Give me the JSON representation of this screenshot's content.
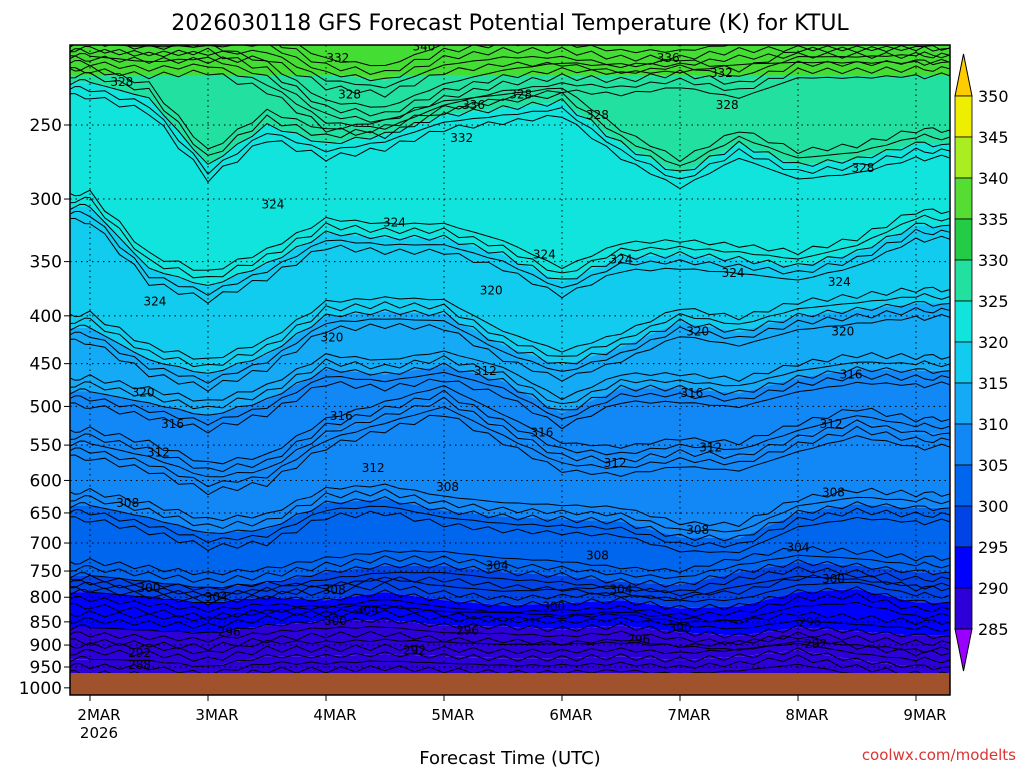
{
  "chart_data": {
    "type": "heatmap",
    "title": "2026030118 GFS Forecast Potential Temperature (K) for KTUL",
    "xlabel": "Forecast Time (UTC)",
    "ylabel": "",
    "x_ticks": [
      "2MAR",
      "3MAR",
      "4MAR",
      "5MAR",
      "6MAR",
      "7MAR",
      "8MAR",
      "9MAR"
    ],
    "x_year": "2026",
    "y_ticks": [
      250,
      300,
      350,
      400,
      450,
      500,
      550,
      600,
      650,
      700,
      750,
      800,
      850,
      900,
      950,
      1000
    ],
    "y_scale": "log-pressure, inverted",
    "ylim": [
      1000,
      200
    ],
    "grid": "dotted",
    "colorbar_levels": [
      285,
      290,
      295,
      300,
      305,
      310,
      315,
      320,
      325,
      330,
      335,
      340,
      345,
      350
    ],
    "colorbar_colors": [
      "#9a00ff",
      "#6a00e8",
      "#2e00d8",
      "#0000ff",
      "#0044e6",
      "#0066ee",
      "#1188f5",
      "#14aaf5",
      "#11ccee",
      "#11e4dd",
      "#22e0a0",
      "#22cc44",
      "#55dd33",
      "#aaee22",
      "#eeee00",
      "#ffcc00"
    ],
    "series": [
      {
        "name": "292",
        "values": [
          932,
          935,
          950,
          925,
          925,
          920,
          925,
          930,
          930,
          926,
          934,
          926,
          912,
          935,
          950
        ]
      },
      {
        "name": "296",
        "values": [
          862,
          868,
          874,
          858,
          848,
          846,
          858,
          860,
          866,
          858,
          872,
          880,
          862,
          870,
          880
        ]
      },
      {
        "name": "300",
        "values": [
          790,
          800,
          812,
          800,
          806,
          790,
          806,
          816,
          812,
          806,
          822,
          818,
          790,
          784,
          810
        ]
      },
      {
        "name": "304",
        "values": [
          758,
          770,
          782,
          772,
          752,
          740,
          740,
          752,
          758,
          770,
          776,
          752,
          734,
          740,
          752
        ]
      },
      {
        "name": "308",
        "values": [
          638,
          658,
          684,
          676,
          634,
          628,
          646,
          656,
          660,
          664,
          690,
          692,
          650,
          636,
          642
        ]
      },
      {
        "name": "312",
        "values": [
          548,
          566,
          596,
          584,
          534,
          512,
          492,
          528,
          566,
          572,
          560,
          566,
          540,
          520,
          534
        ]
      },
      {
        "name": "316",
        "values": [
          482,
          496,
          512,
          492,
          456,
          462,
          452,
          470,
          508,
          478,
          478,
          484,
          466,
          456,
          458
        ]
      },
      {
        "name": "320",
        "values": [
          412,
          446,
          462,
          440,
          400,
          396,
          398,
          430,
          452,
          432,
          406,
          416,
          400,
          394,
          388
        ]
      },
      {
        "name": "324",
        "values": [
          306,
          356,
          372,
          352,
          326,
          330,
          330,
          344,
          368,
          346,
          344,
          348,
          354,
          342,
          320
        ]
      },
      {
        "name": "328",
        "values": [
          225,
          234,
          276,
          250,
          262,
          256,
          244,
          240,
          236,
          262,
          282,
          262,
          276,
          272,
          262
        ]
      },
      {
        "name": "332",
        "values": [
          211,
          214,
          212,
          222,
          244,
          248,
          234,
          226,
          222,
          224,
          220,
          226,
          215,
          215,
          214
        ]
      },
      {
        "name": "336",
        "values": [
          205,
          206,
          206,
          205,
          220,
          224,
          212,
          208,
          208,
          212,
          212,
          208,
          207,
          207,
          207
        ]
      }
    ],
    "x": [
      0,
      0.5,
      1,
      1.5,
      2,
      2.5,
      3,
      3.5,
      4,
      4.5,
      5,
      5.5,
      6,
      6.5,
      7
    ],
    "contour_labels": [
      {
        "text": "328",
        "x": 0.27,
        "y": 225
      },
      {
        "text": "332",
        "x": 2.1,
        "y": 212
      },
      {
        "text": "340",
        "x": 2.83,
        "y": 206
      },
      {
        "text": "336",
        "x": 4.9,
        "y": 212
      },
      {
        "text": "332",
        "x": 5.35,
        "y": 220
      },
      {
        "text": "328",
        "x": 2.2,
        "y": 232
      },
      {
        "text": "336",
        "x": 3.25,
        "y": 238
      },
      {
        "text": "328",
        "x": 3.65,
        "y": 232
      },
      {
        "text": "328",
        "x": 4.3,
        "y": 244
      },
      {
        "text": "328",
        "x": 5.4,
        "y": 238
      },
      {
        "text": "332",
        "x": 3.15,
        "y": 258
      },
      {
        "text": "328",
        "x": 6.55,
        "y": 278
      },
      {
        "text": "324",
        "x": 1.55,
        "y": 304
      },
      {
        "text": "324",
        "x": 2.58,
        "y": 318
      },
      {
        "text": "324",
        "x": 3.85,
        "y": 344
      },
      {
        "text": "324",
        "x": 4.5,
        "y": 348
      },
      {
        "text": "324",
        "x": 5.45,
        "y": 360
      },
      {
        "text": "324",
        "x": 6.35,
        "y": 368
      },
      {
        "text": "324",
        "x": 0.55,
        "y": 386
      },
      {
        "text": "320",
        "x": 3.4,
        "y": 376
      },
      {
        "text": "320",
        "x": 2.05,
        "y": 422
      },
      {
        "text": "320",
        "x": 5.15,
        "y": 416
      },
      {
        "text": "320",
        "x": 6.38,
        "y": 416
      },
      {
        "text": "320",
        "x": 0.45,
        "y": 483
      },
      {
        "text": "316",
        "x": 6.45,
        "y": 462
      },
      {
        "text": "312",
        "x": 3.35,
        "y": 458
      },
      {
        "text": "316",
        "x": 5.1,
        "y": 484
      },
      {
        "text": "316",
        "x": 0.7,
        "y": 522
      },
      {
        "text": "316",
        "x": 2.13,
        "y": 512
      },
      {
        "text": "316",
        "x": 3.83,
        "y": 533
      },
      {
        "text": "312",
        "x": 6.28,
        "y": 522
      },
      {
        "text": "312",
        "x": 5.26,
        "y": 553
      },
      {
        "text": "312",
        "x": 0.58,
        "y": 560
      },
      {
        "text": "312",
        "x": 2.4,
        "y": 582
      },
      {
        "text": "312",
        "x": 4.45,
        "y": 575
      },
      {
        "text": "308",
        "x": 3.03,
        "y": 610
      },
      {
        "text": "308",
        "x": 6.3,
        "y": 618
      },
      {
        "text": "308",
        "x": 0.32,
        "y": 634
      },
      {
        "text": "308",
        "x": 5.15,
        "y": 678
      },
      {
        "text": "304",
        "x": 3.45,
        "y": 740
      },
      {
        "text": "308",
        "x": 4.3,
        "y": 722
      },
      {
        "text": "304",
        "x": 6.0,
        "y": 708
      },
      {
        "text": "300",
        "x": 6.3,
        "y": 765
      },
      {
        "text": "304",
        "x": 4.5,
        "y": 785
      },
      {
        "text": "300",
        "x": 0.5,
        "y": 782
      },
      {
        "text": "304",
        "x": 1.07,
        "y": 800
      },
      {
        "text": "308",
        "x": 2.07,
        "y": 786
      },
      {
        "text": "304",
        "x": 2.35,
        "y": 826
      },
      {
        "text": "300",
        "x": 3.93,
        "y": 818
      },
      {
        "text": "296",
        "x": 6.1,
        "y": 850
      },
      {
        "text": "300",
        "x": 5.0,
        "y": 863
      },
      {
        "text": "300",
        "x": 2.08,
        "y": 848
      },
      {
        "text": "296",
        "x": 1.18,
        "y": 872
      },
      {
        "text": "296",
        "x": 3.2,
        "y": 868
      },
      {
        "text": "296",
        "x": 4.65,
        "y": 888
      },
      {
        "text": "292",
        "x": 6.15,
        "y": 898
      },
      {
        "text": "292",
        "x": 0.42,
        "y": 918
      },
      {
        "text": "292",
        "x": 2.75,
        "y": 912
      },
      {
        "text": "288",
        "x": 0.42,
        "y": 945
      }
    ],
    "legend": "right colorbar"
  },
  "credit": "coolwx.com/modelts"
}
